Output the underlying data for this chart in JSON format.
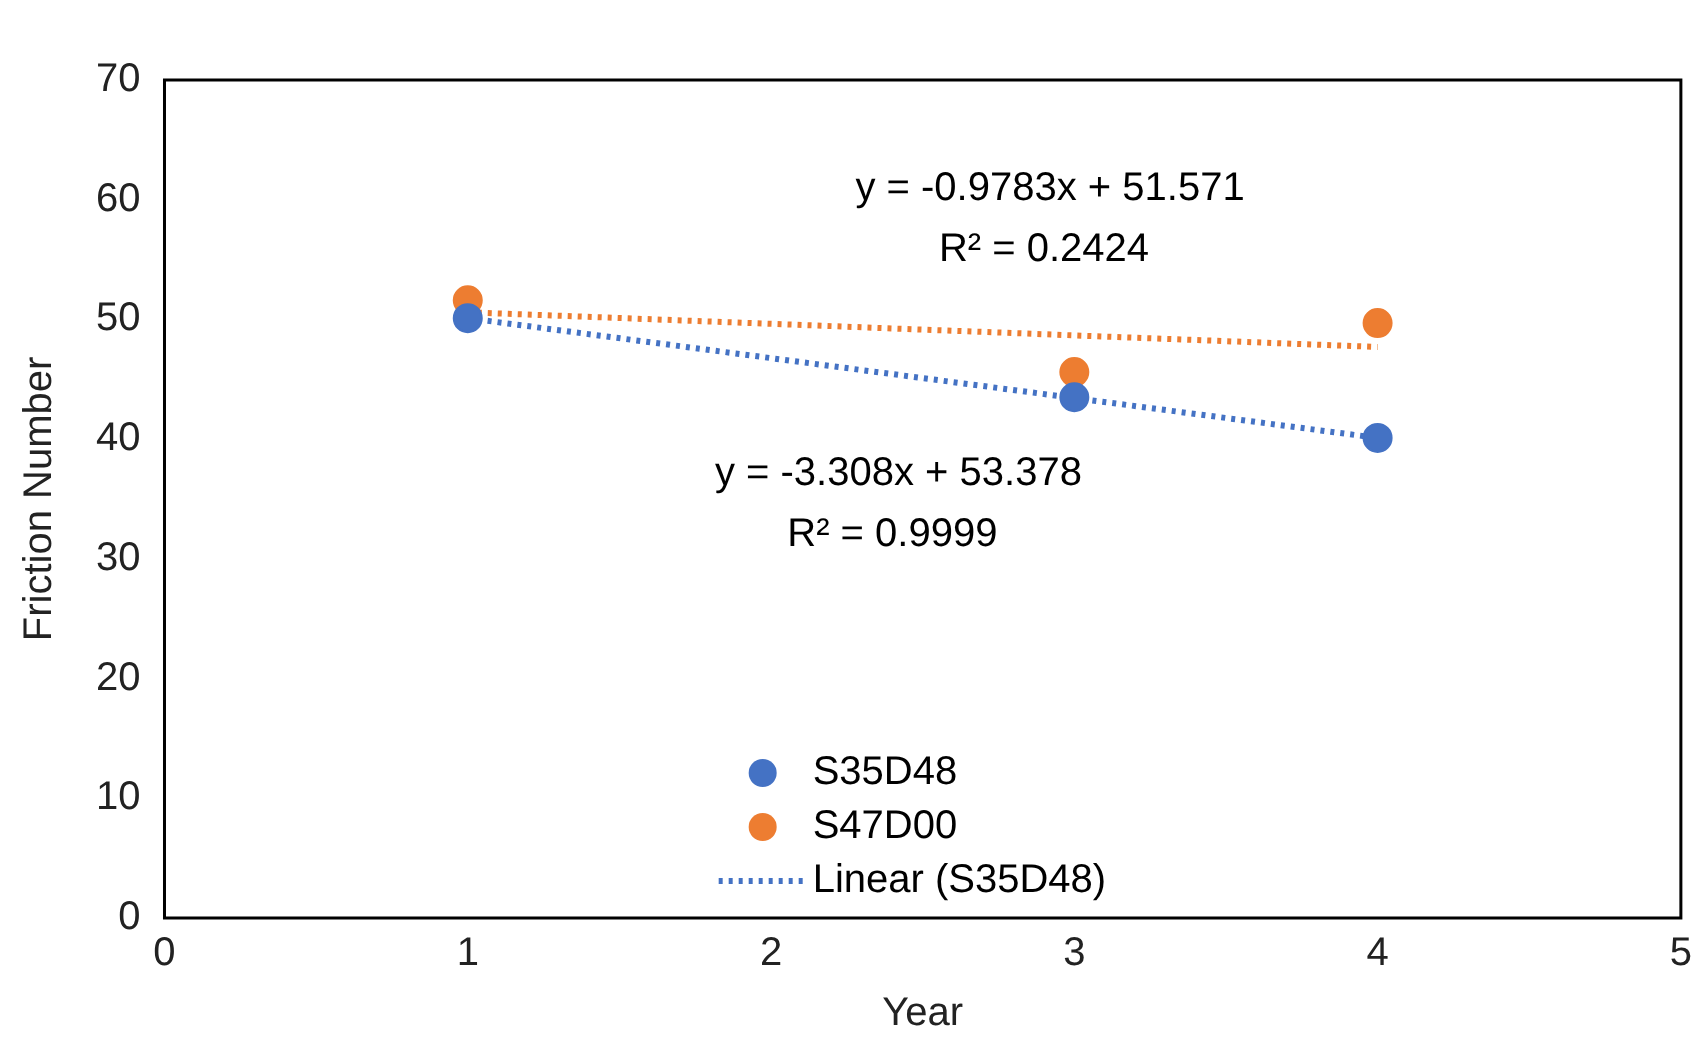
{
  "chart_data": {
    "type": "scatter",
    "xlabel": "Year",
    "ylabel": "Friction Number",
    "xlim": [
      0,
      5
    ],
    "xticks": [
      0,
      1,
      2,
      3,
      4,
      5
    ],
    "ylim": [
      0,
      70
    ],
    "yticks": [
      0,
      10,
      20,
      30,
      40,
      50,
      60,
      70
    ],
    "grid": false,
    "legend": "bottom",
    "marker": "circle",
    "series": [
      {
        "name": "S35D48",
        "type": "scatter",
        "color": "#4472c4",
        "x": [
          1,
          3,
          4
        ],
        "values": [
          50.1,
          43.5,
          40.1
        ]
      },
      {
        "name": "S47D00",
        "type": "scatter",
        "color": "#ed7d31",
        "x": [
          1,
          3,
          4
        ],
        "values": [
          51.6,
          45.6,
          49.7
        ]
      },
      {
        "name": "Linear (S35D48)",
        "type": "line",
        "line_style": "dotted",
        "marker": "none",
        "color": "#4472c4",
        "x": [
          1,
          4
        ],
        "values": [
          50.1,
          40.1
        ]
      },
      {
        "type": "line",
        "line_style": "dotted",
        "marker": "none",
        "color": "#ed7d31",
        "x": [
          1,
          4
        ],
        "values": [
          50.6,
          47.7
        ]
      }
    ],
    "annotations": [
      "y = -0.9783x + 51.571",
      "R² = 0.2424",
      "y = -3.308x + 53.378",
      "R² = 0.9999"
    ]
  }
}
